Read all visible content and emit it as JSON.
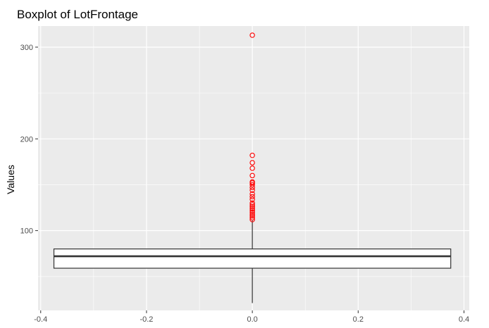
{
  "chart_data": {
    "type": "boxplot",
    "title": "Boxplot of LotFrontage",
    "xlabel": "",
    "ylabel": "Values",
    "xlim": [
      -0.405,
      0.41
    ],
    "ylim": [
      13,
      323
    ],
    "x_ticks": [
      -0.4,
      -0.2,
      0.0,
      0.2,
      0.4
    ],
    "x_tick_labels": [
      "-0.4",
      "-0.2",
      "0.0",
      "0.2",
      "0.4"
    ],
    "y_ticks": [
      100,
      200,
      300
    ],
    "y_tick_labels": [
      "100",
      "200",
      "300"
    ],
    "grid": true,
    "box": {
      "x_center": 0,
      "x_min": -0.375,
      "x_max": 0.375,
      "q1": 59,
      "median": 72,
      "q3": 80,
      "whisker_low": 21,
      "whisker_high": 111
    },
    "outliers": [
      112,
      114,
      116,
      118,
      120,
      122,
      124,
      126,
      128,
      130,
      134,
      137,
      140,
      144,
      147,
      150,
      152,
      153,
      160,
      168,
      174,
      182,
      313
    ],
    "colors": {
      "panel_background": "#ebebeb",
      "grid_major": "#ffffff",
      "box_fill": "#ffffff",
      "box_line": "#333333",
      "outlier": "#ff0000"
    }
  }
}
